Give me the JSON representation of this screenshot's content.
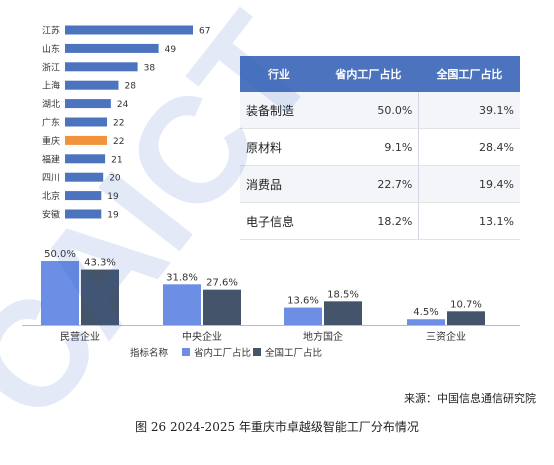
{
  "colors": {
    "blue_bar": "#4b73be",
    "highlight_bar": "#f0933a",
    "prov_bar": "#6c8ee4",
    "nat_bar": "#44546a",
    "table_header": "#4b73be"
  },
  "chart_data": [
    {
      "type": "bar",
      "orientation": "horizontal",
      "categories": [
        "江苏",
        "山东",
        "浙江",
        "上海",
        "湖北",
        "广东",
        "重庆",
        "福建",
        "四川",
        "北京",
        "安徽"
      ],
      "values": [
        67,
        49,
        38,
        28,
        24,
        22,
        22,
        21,
        20,
        19,
        19
      ],
      "highlight": "重庆"
    },
    {
      "type": "table",
      "headers": [
        "行业",
        "省内工厂占比",
        "全国工厂占比"
      ],
      "rows": [
        [
          "装备制造",
          "50.0%",
          "39.1%"
        ],
        [
          "原材料",
          "9.1%",
          "28.4%"
        ],
        [
          "消费品",
          "22.7%",
          "19.4%"
        ],
        [
          "电子信息",
          "18.2%",
          "13.1%"
        ]
      ]
    },
    {
      "type": "bar",
      "categories": [
        "民营企业",
        "中央企业",
        "地方国企",
        "三资企业"
      ],
      "series": [
        {
          "name": "省内工厂占比",
          "values": [
            50.0,
            31.8,
            13.6,
            4.5
          ],
          "labels": [
            "50.0%",
            "31.8%",
            "13.6%",
            "4.5%"
          ]
        },
        {
          "name": "全国工厂占比",
          "values": [
            43.3,
            27.6,
            18.5,
            10.7
          ],
          "labels": [
            "43.3%",
            "27.6%",
            "18.5%",
            "10.7%"
          ]
        }
      ],
      "legend_title": "指标名称",
      "legend_position": "bottom-center",
      "ylim": [
        0,
        55
      ]
    }
  ],
  "source": "来源：中国信息通信研究院",
  "caption": "图 26 2024-2025 年重庆市卓越级智能工厂分布情况",
  "watermark": "CAICT 中国信通院"
}
